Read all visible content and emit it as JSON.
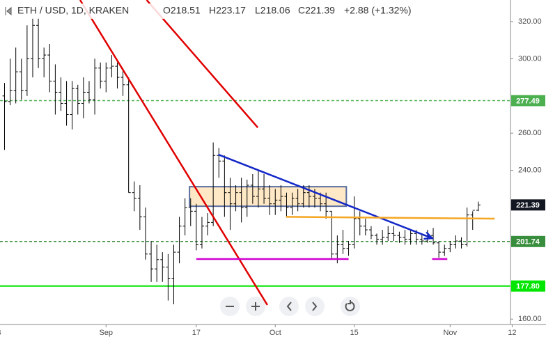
{
  "header": {
    "symbol": "ETH / USD, 1D, KRAKEN",
    "open": "O218.51",
    "high": "H223.17",
    "low": "L218.06",
    "close": "C221.39",
    "change": "+2.88 (+1.32%)"
  },
  "chart_data": {
    "type": "ohlc",
    "color": "#000000",
    "x": [
      -18,
      -17,
      -16,
      -15,
      -14,
      -13,
      -12,
      -11,
      -10,
      -9,
      -8,
      -7,
      -6,
      -5,
      -4,
      -3,
      -2,
      -1,
      0,
      1,
      2,
      3,
      4,
      5,
      6,
      7,
      8,
      9,
      10,
      11,
      12,
      13,
      14,
      15,
      16,
      17,
      18,
      19,
      20,
      21,
      22,
      23,
      24,
      25,
      26,
      27,
      28,
      29,
      30,
      31,
      32,
      33,
      34,
      35,
      36,
      37,
      38,
      39,
      40,
      41,
      42,
      43,
      44,
      45,
      46,
      47,
      48,
      49,
      50,
      51,
      52,
      53,
      54,
      55,
      56,
      57,
      58,
      59,
      60,
      61,
      62,
      63,
      64,
      65,
      66
    ],
    "open": [
      280,
      277,
      283,
      293,
      283,
      300,
      318,
      300,
      302,
      288,
      282,
      276,
      270,
      284,
      276,
      282,
      278,
      295,
      288,
      295,
      296,
      290,
      286,
      228,
      225,
      215,
      195,
      187,
      192,
      188,
      182,
      196,
      210,
      220,
      218,
      200,
      210,
      212,
      248,
      245,
      228,
      222,
      228,
      220,
      232,
      226,
      230,
      225,
      222,
      224,
      226,
      220,
      225,
      222,
      228,
      226,
      225,
      222,
      218,
      195,
      200,
      198,
      200,
      214,
      210,
      208,
      205,
      203,
      204,
      206,
      205,
      204,
      203,
      206,
      203,
      202,
      205,
      201,
      196,
      198,
      200,
      202,
      200,
      216,
      218.51
    ],
    "high": [
      287,
      300,
      306,
      300,
      318,
      322,
      322,
      306,
      308,
      297,
      290,
      288,
      288,
      286,
      290,
      288,
      300,
      298,
      298,
      302,
      298,
      295,
      290,
      234,
      232,
      220,
      202,
      200,
      196,
      195,
      200,
      215,
      225,
      225,
      222,
      215,
      217,
      255,
      252,
      248,
      236,
      232,
      236,
      235,
      238,
      240,
      238,
      232,
      230,
      232,
      228,
      228,
      230,
      232,
      232,
      230,
      228,
      228,
      218,
      205,
      208,
      202,
      226,
      218,
      214,
      210,
      206,
      208,
      210,
      210,
      207,
      208,
      208,
      208,
      206,
      208,
      209,
      202,
      200,
      202,
      205,
      204,
      220,
      218,
      223.17
    ],
    "low": [
      251,
      275,
      276,
      278,
      280,
      290,
      295,
      290,
      282,
      270,
      272,
      264,
      262,
      270,
      268,
      276,
      270,
      284,
      282,
      290,
      284,
      280,
      228,
      218,
      208,
      192,
      180,
      180,
      180,
      170,
      168,
      190,
      205,
      210,
      197,
      198,
      205,
      210,
      236,
      215,
      208,
      218,
      212,
      215,
      222,
      220,
      222,
      216,
      216,
      218,
      215,
      216,
      218,
      220,
      220,
      220,
      218,
      214,
      192,
      190,
      195,
      194,
      198,
      205,
      205,
      203,
      200,
      200,
      202,
      202,
      201,
      200,
      200,
      200,
      200,
      201,
      200,
      193,
      194,
      196,
      198,
      198,
      199,
      208,
      218.06
    ],
    "close": [
      277,
      283,
      293,
      283,
      300,
      318,
      300,
      302,
      288,
      282,
      276,
      270,
      284,
      276,
      282,
      278,
      295,
      288,
      295,
      296,
      290,
      286,
      228,
      225,
      215,
      195,
      187,
      192,
      188,
      182,
      196,
      210,
      220,
      218,
      200,
      210,
      212,
      248,
      245,
      228,
      222,
      228,
      220,
      232,
      226,
      230,
      225,
      222,
      224,
      226,
      220,
      225,
      222,
      228,
      226,
      225,
      222,
      218,
      195,
      200,
      198,
      200,
      214,
      210,
      208,
      205,
      203,
      204,
      206,
      205,
      204,
      203,
      206,
      203,
      202,
      205,
      201,
      196,
      198,
      200,
      202,
      200,
      216,
      218.51,
      221.39
    ],
    "xlim": [
      -18.8,
      71.7
    ],
    "ylim": [
      157.1,
      331.6
    ],
    "xticks": [
      {
        "value": -19,
        "label": "3"
      },
      {
        "value": 0,
        "label": "Sep"
      },
      {
        "value": 16,
        "label": "17"
      },
      {
        "value": 30,
        "label": "Oct"
      },
      {
        "value": 44,
        "label": "15"
      },
      {
        "value": 61,
        "label": "Nov"
      },
      {
        "value": 72,
        "label": "12"
      }
    ],
    "yticks": [
      {
        "value": 160,
        "label": "160.00"
      },
      {
        "value": 240,
        "label": "240.00"
      },
      {
        "value": 260,
        "label": "260.00"
      },
      {
        "value": 300,
        "label": "300.00"
      },
      {
        "value": 320,
        "label": "320.00"
      }
    ],
    "levels": [
      {
        "value": 277.49,
        "color": "#4caf50",
        "dashed": true
      },
      {
        "value": 201.74,
        "color": "#388e3c",
        "dashed": true
      },
      {
        "value": {
          "value": 177.8,
          "label": "177.80"
        },
        "color": "#00e600",
        "dashed": false
      },
      {
        "value": 221.39,
        "color": "#131722",
        "line": false
      }
    ],
    "rectangle": {
      "x": [
        14.8,
        42.6
      ],
      "y": [
        220.7,
        231.2
      ],
      "fill": "#ffe0b2",
      "stroke": "#5b6fa0"
    },
    "trendlines": [
      {
        "x": [
          -4.6,
          28.6
        ],
        "y": [
          331.6,
          167.6
        ],
        "color": "#e00000"
      },
      {
        "x": [
          7.2,
          26.9
        ],
        "y": [
          331.6,
          263
        ],
        "color": "#e00000"
      },
      {
        "x": [
          19.9,
          57.8
        ],
        "y": [
          248.5,
          203.5
        ],
        "color": "#1428c8",
        "arrow": true
      },
      {
        "x": [
          31.9,
          68.9
        ],
        "y": [
          215,
          214
        ],
        "color": "#f5a623"
      },
      {
        "x": [
          16,
          43
        ],
        "y": [
          192.3,
          192.3
        ],
        "color": "#d000d0"
      },
      {
        "x": [
          57.8,
          60.5
        ],
        "y": [
          192.3,
          192.3
        ],
        "color": "#d000d0"
      }
    ]
  }
}
